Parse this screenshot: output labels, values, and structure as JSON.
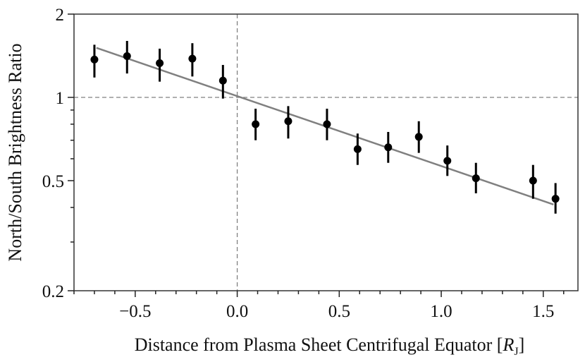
{
  "chart_data": {
    "type": "scatter",
    "title": "",
    "xlabel": "Distance from Plasma Sheet Centrifugal Equator [",
    "xlabel_italic": "R",
    "xlabel_sub": "J",
    "xlabel_close": "]",
    "ylabel": "North/South Brightness Ratio",
    "xlim": [
      -0.8,
      1.67
    ],
    "ylim": [
      0.2,
      2
    ],
    "yscale": "log",
    "xticks": [
      -0.5,
      0.0,
      0.5,
      1.0,
      1.5
    ],
    "xtick_labels": [
      "−0.5",
      "0.0",
      "0.5",
      "1.0",
      "1.5"
    ],
    "xminor_step": 0.1,
    "yticks": [
      0.2,
      0.5,
      1,
      2
    ],
    "ytick_labels": [
      "0.2",
      "0.5",
      "1",
      "2"
    ],
    "yminor_ticks": [
      0.3,
      0.4,
      0.6,
      0.7,
      0.8,
      0.9
    ],
    "grid": false,
    "legend": null,
    "series": [
      {
        "name": "measurements",
        "style": "points-with-errorbars",
        "color": "#000000",
        "points": [
          {
            "x": -0.7,
            "y": 1.37,
            "ylo": 1.18,
            "yhi": 1.55
          },
          {
            "x": -0.54,
            "y": 1.41,
            "ylo": 1.22,
            "yhi": 1.6
          },
          {
            "x": -0.38,
            "y": 1.33,
            "ylo": 1.14,
            "yhi": 1.5
          },
          {
            "x": -0.22,
            "y": 1.38,
            "ylo": 1.19,
            "yhi": 1.57
          },
          {
            "x": -0.07,
            "y": 1.15,
            "ylo": 0.99,
            "yhi": 1.31
          },
          {
            "x": 0.09,
            "y": 0.8,
            "ylo": 0.7,
            "yhi": 0.91
          },
          {
            "x": 0.25,
            "y": 0.82,
            "ylo": 0.71,
            "yhi": 0.93
          },
          {
            "x": 0.44,
            "y": 0.8,
            "ylo": 0.7,
            "yhi": 0.91
          },
          {
            "x": 0.59,
            "y": 0.65,
            "ylo": 0.57,
            "yhi": 0.74
          },
          {
            "x": 0.74,
            "y": 0.66,
            "ylo": 0.58,
            "yhi": 0.75
          },
          {
            "x": 0.89,
            "y": 0.72,
            "ylo": 0.63,
            "yhi": 0.82
          },
          {
            "x": 1.03,
            "y": 0.59,
            "ylo": 0.52,
            "yhi": 0.67
          },
          {
            "x": 1.17,
            "y": 0.51,
            "ylo": 0.45,
            "yhi": 0.58
          },
          {
            "x": 1.45,
            "y": 0.5,
            "ylo": 0.43,
            "yhi": 0.57
          },
          {
            "x": 1.56,
            "y": 0.43,
            "ylo": 0.38,
            "yhi": 0.49
          }
        ]
      },
      {
        "name": "fit",
        "style": "line",
        "color": "#808080",
        "x": [
          -0.69,
          1.55
        ],
        "y": [
          1.51,
          0.41
        ]
      }
    ],
    "reference_lines": [
      {
        "orientation": "horizontal",
        "value": 1,
        "style": "dashed",
        "color": "#808080"
      },
      {
        "orientation": "vertical",
        "value": 0,
        "style": "dashed",
        "color": "#808080"
      }
    ]
  }
}
